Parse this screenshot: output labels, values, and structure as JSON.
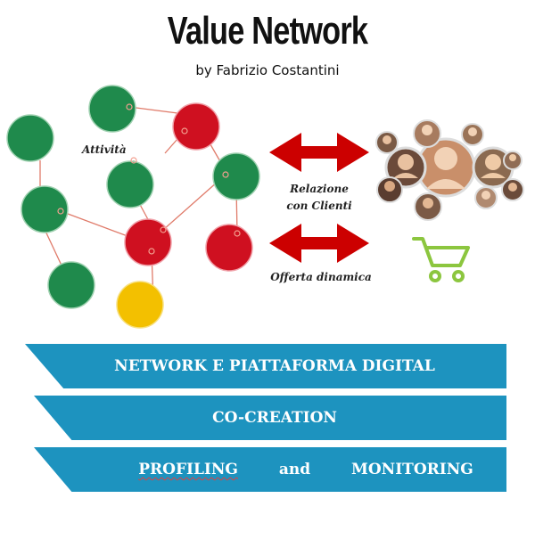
{
  "header": {
    "title": "Value Network",
    "subtitle": "by Fabrizio Costantini"
  },
  "diagram": {
    "label_activities": "Attività",
    "label_relations_1": "Relazione",
    "label_relations_2": "con Clienti",
    "label_offer": "Offerta dinamica",
    "colors": {
      "green": "#1f8a4c",
      "red": "#cf1020",
      "yellow": "#f3c000",
      "link": "#e07b6a",
      "arrow": "#cc0000",
      "cart": "#8cc63f"
    },
    "people_icon": "person-avatar-icon",
    "cart_icon": "shopping-cart-icon"
  },
  "banners": [
    {
      "label": "NETWORK E PIATTAFORMA DIGITAL"
    },
    {
      "label": "CO-CREATION"
    },
    {
      "label_a": "PROFILING",
      "label_b": "and",
      "label_c": "MONITORING"
    }
  ]
}
